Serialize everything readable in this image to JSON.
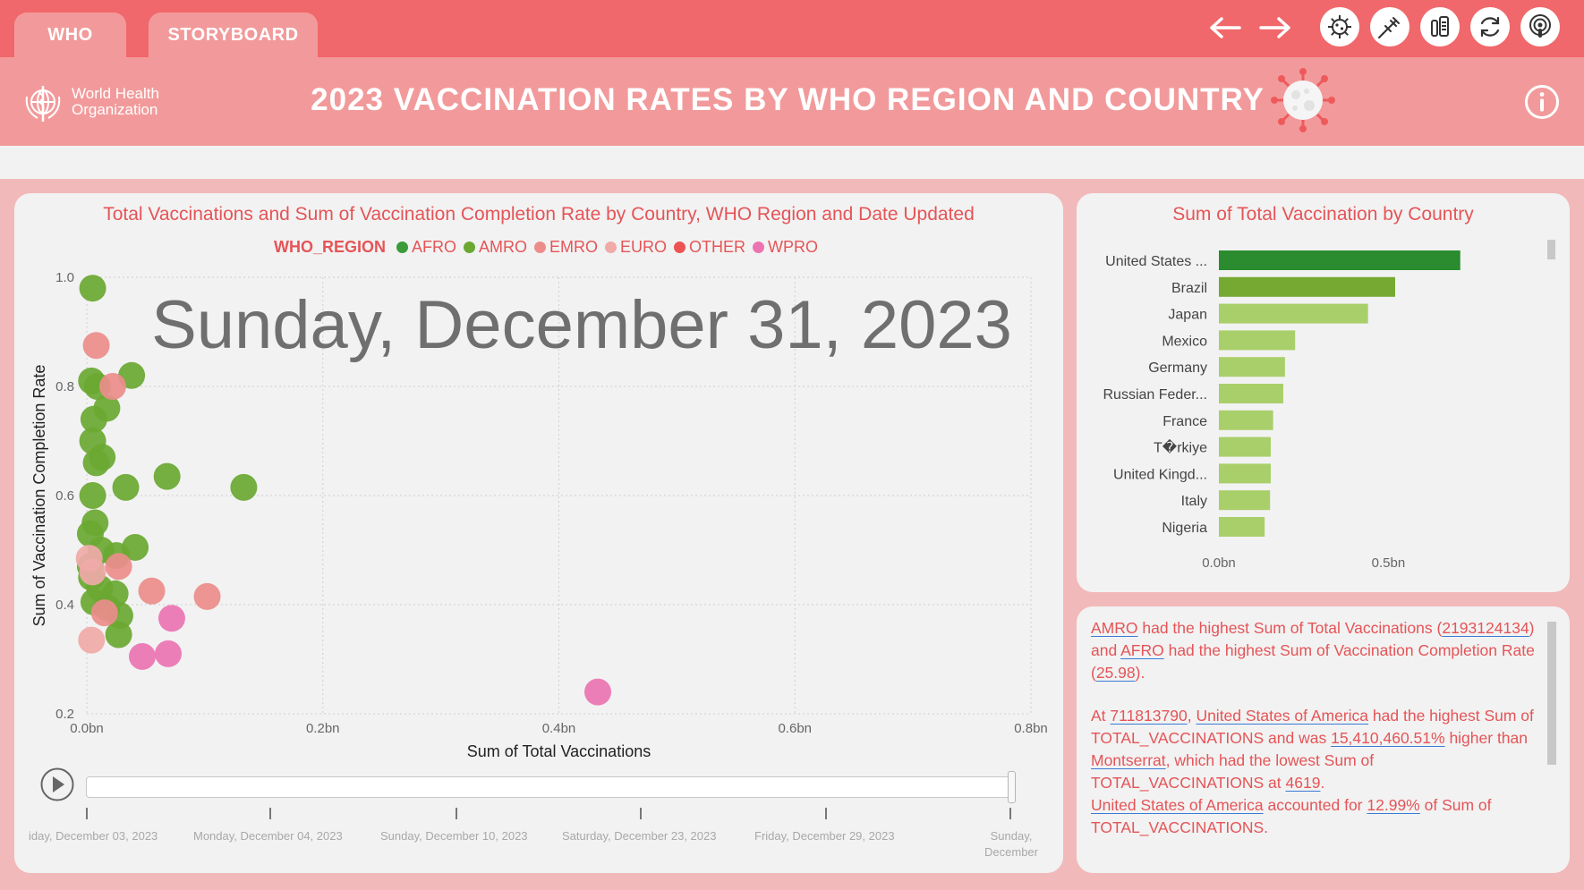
{
  "tabs": [
    {
      "label": "WHO"
    },
    {
      "label": "STORYBOARD"
    }
  ],
  "toolbar": {
    "icons": [
      "arrow-left-icon",
      "arrow-right-icon",
      "virus-icon",
      "syringe-icon",
      "test-tube-icon",
      "refresh-icon",
      "podcast-icon"
    ]
  },
  "header": {
    "logo_line1": "World Health",
    "logo_line2": "Organization",
    "title": "2023 VACCINATION RATES BY WHO REGION AND COUNTRY"
  },
  "colors": {
    "topbar": "#f0686b",
    "header": "#f29a9b",
    "accent": "#e55457",
    "AFRO": "#3c9a3a",
    "AMRO": "#6aa832",
    "EMRO": "#ec8d8b",
    "EURO": "#f0aaa8",
    "OTHER": "#ee5353",
    "WPRO": "#ec74b2"
  },
  "scatter": {
    "title": "Total Vaccinations and Sum of Vaccination Completion Rate by Country, WHO Region and Date Updated",
    "legend_title": "WHO_REGION",
    "date_display": "Sunday, December 31, 2023"
  },
  "bars": {
    "title": "Sum of Total Vaccination by Country"
  },
  "narrative": {
    "p1": [
      {
        "t": "AMRO",
        "hl": true
      },
      {
        "t": " had the highest Sum of Total Vaccinations (",
        "hl": false
      },
      {
        "t": "2193124134",
        "hl": true
      },
      {
        "t": ") and ",
        "hl": false
      },
      {
        "t": "AFRO",
        "hl": true
      },
      {
        "t": " had the highest Sum of Vaccination Completion Rate (",
        "hl": false
      },
      {
        "t": "25.98",
        "hl": true
      },
      {
        "t": ").",
        "hl": false
      }
    ],
    "p2": [
      {
        "t": "At ",
        "hl": false
      },
      {
        "t": "711813790",
        "hl": true
      },
      {
        "t": ", ",
        "hl": false
      },
      {
        "t": "United States of America",
        "hl": true
      },
      {
        "t": " had the highest Sum of TOTAL_VACCINATIONS and was ",
        "hl": false
      },
      {
        "t": "15,410,460.51%",
        "hl": true
      },
      {
        "t": " higher than ",
        "hl": false
      },
      {
        "t": "Montserrat",
        "hl": true
      },
      {
        "t": ", which had the lowest Sum of TOTAL_VACCINATIONS at ",
        "hl": false
      },
      {
        "t": "4619",
        "hl": true
      },
      {
        "t": ".",
        "hl": false
      }
    ],
    "p3": [
      {
        "t": "United States of America",
        "hl": true
      },
      {
        "t": " accounted for ",
        "hl": false
      },
      {
        "t": "12.99%",
        "hl": true
      },
      {
        "t": " of Sum of TOTAL_VACCINATIONS.",
        "hl": false
      }
    ]
  },
  "timeline": {
    "labels": [
      "iday, December 03, 2023",
      "Monday, December 04, 2023",
      "Sunday, December 10, 2023",
      "Saturday, December 23, 2023",
      "Friday, December 29, 2023",
      "Sunday,\nDecember"
    ],
    "position": 1.0
  },
  "chart_data": [
    {
      "type": "scatter",
      "title": "Total Vaccinations and Sum of Vaccination Completion Rate by Country, WHO Region and Date Updated",
      "xlabel": "Sum of Total Vaccinations",
      "ylabel": "Sum of Vaccination Completion Rate",
      "xlim": [
        0,
        0.8
      ],
      "ylim": [
        0.2,
        1.0
      ],
      "x_ticks": [
        "0.0bn",
        "0.2bn",
        "0.4bn",
        "0.6bn",
        "0.8bn"
      ],
      "y_ticks": [
        "0.2",
        "0.4",
        "0.6",
        "0.8",
        "1.0"
      ],
      "grid": true,
      "legend_position": "top",
      "series": [
        {
          "name": "AFRO",
          "color": "#3c9a3a",
          "points": []
        },
        {
          "name": "AMRO",
          "color": "#6aa832",
          "points": [
            [
              0.005,
              0.98
            ],
            [
              0.038,
              0.82
            ],
            [
              0.017,
              0.76
            ],
            [
              0.006,
              0.74
            ],
            [
              0.013,
              0.67
            ],
            [
              0.008,
              0.66
            ],
            [
              0.068,
              0.635
            ],
            [
              0.033,
              0.615
            ],
            [
              0.133,
              0.615
            ],
            [
              0.005,
              0.6
            ],
            [
              0.007,
              0.55
            ],
            [
              0.003,
              0.53
            ],
            [
              0.041,
              0.505
            ],
            [
              0.025,
              0.49
            ],
            [
              0.004,
              0.45
            ],
            [
              0.011,
              0.43
            ],
            [
              0.024,
              0.42
            ],
            [
              0.006,
              0.405
            ],
            [
              0.028,
              0.38
            ],
            [
              0.017,
              0.395
            ],
            [
              0.027,
              0.345
            ],
            [
              0.004,
              0.81
            ],
            [
              0.009,
              0.8
            ],
            [
              0.005,
              0.7
            ],
            [
              0.012,
              0.5
            ],
            [
              0.003,
              0.47
            ]
          ]
        },
        {
          "name": "EMRO",
          "color": "#ec8d8b",
          "points": [
            [
              0.008,
              0.875
            ],
            [
              0.022,
              0.8
            ],
            [
              0.055,
              0.425
            ],
            [
              0.102,
              0.415
            ],
            [
              0.027,
              0.47
            ],
            [
              0.015,
              0.385
            ]
          ]
        },
        {
          "name": "EURO",
          "color": "#f0aaa8",
          "points": [
            [
              0.002,
              0.485
            ],
            [
              0.004,
              0.335
            ],
            [
              0.005,
              0.46
            ]
          ]
        },
        {
          "name": "OTHER",
          "color": "#ee5353",
          "points": []
        },
        {
          "name": "WPRO",
          "color": "#ec74b2",
          "points": [
            [
              0.072,
              0.375
            ],
            [
              0.047,
              0.305
            ],
            [
              0.069,
              0.31
            ],
            [
              0.433,
              0.24
            ]
          ]
        }
      ]
    },
    {
      "type": "bar",
      "orientation": "horizontal",
      "title": "Sum of Total Vaccination by Country",
      "categories": [
        "United States ...",
        "Brazil",
        "Japan",
        "Mexico",
        "Germany",
        "Russian Feder...",
        "France",
        "T�rkiye",
        "United Kingd...",
        "Italy",
        "Nigeria"
      ],
      "values": [
        0.712,
        0.52,
        0.44,
        0.225,
        0.195,
        0.19,
        0.16,
        0.153,
        0.153,
        0.151,
        0.135
      ],
      "unit": "bn",
      "x_ticks": [
        "0.0bn",
        "0.5bn"
      ],
      "xlim": [
        0,
        0.85
      ],
      "bar_colors": [
        "#2a8c2e",
        "#76a932",
        "#a9cf6a",
        "#a9cf6a",
        "#a9cf6a",
        "#a9cf6a",
        "#a9cf6a",
        "#a9cf6a",
        "#a9cf6a",
        "#a9cf6a",
        "#a9cf6a"
      ]
    }
  ]
}
